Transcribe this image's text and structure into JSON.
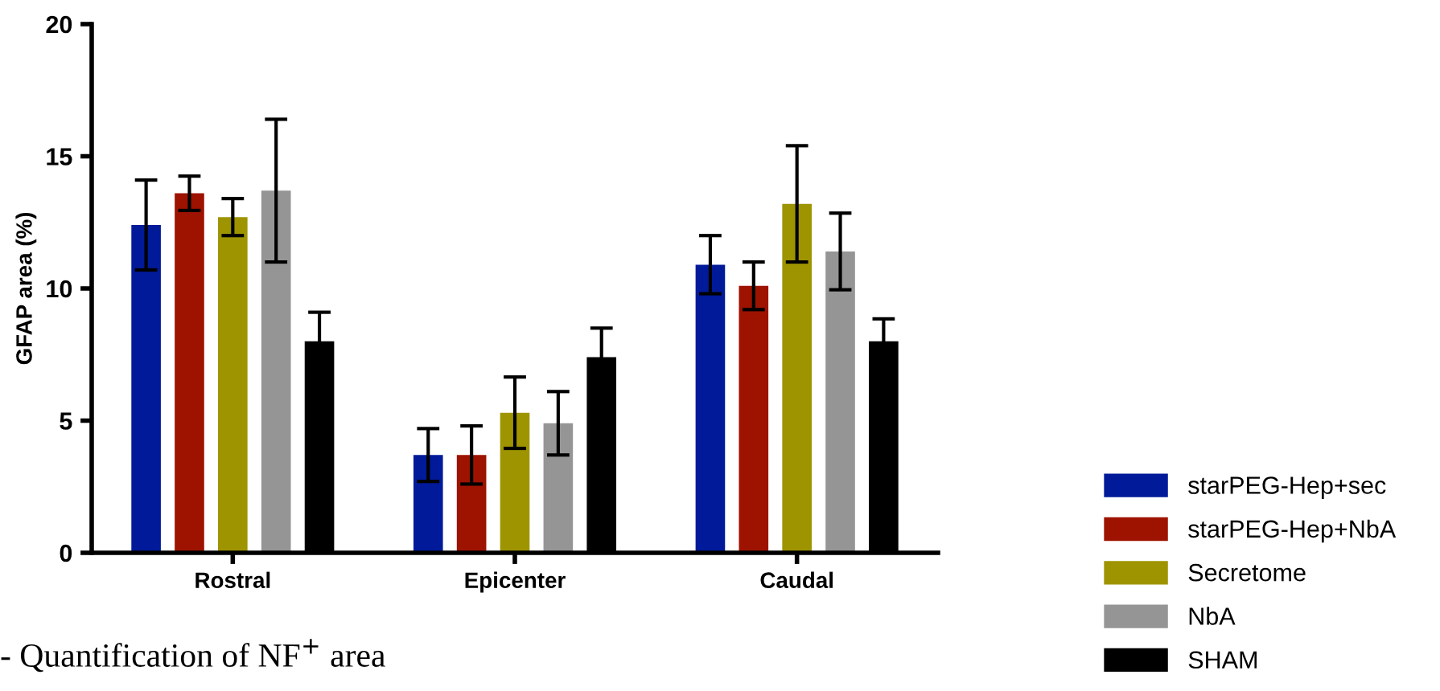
{
  "chart_data": {
    "type": "bar",
    "ylabel": "GFAP area (%)",
    "categories": [
      "Rostral",
      "Epicenter",
      "Caudal"
    ],
    "series": [
      {
        "name": "starPEG-Hep+sec",
        "color": "#001a99",
        "values": [
          12.4,
          3.7,
          10.9
        ],
        "errors": [
          1.7,
          1.0,
          1.1
        ]
      },
      {
        "name": "starPEG-Hep+NbA",
        "color": "#9e1200",
        "values": [
          13.6,
          3.7,
          10.1
        ],
        "errors": [
          0.65,
          1.1,
          0.9
        ]
      },
      {
        "name": "Secretome",
        "color": "#9e9400",
        "values": [
          12.7,
          5.3,
          13.2
        ],
        "errors": [
          0.7,
          1.35,
          2.2
        ]
      },
      {
        "name": "NbA",
        "color": "#959595",
        "values": [
          13.7,
          4.9,
          11.4
        ],
        "errors": [
          2.7,
          1.2,
          1.45
        ]
      },
      {
        "name": "SHAM",
        "color": "#000000",
        "values": [
          8.0,
          7.4,
          8.0
        ],
        "errors": [
          1.1,
          1.1,
          0.85
        ]
      }
    ],
    "ylim": [
      0,
      20
    ],
    "yticks": [
      0,
      5,
      10,
      15,
      20
    ],
    "grid": false,
    "legend": "bottom right",
    "annotations": [
      "- Quantification of NF$^{+}$ area"
    ]
  }
}
